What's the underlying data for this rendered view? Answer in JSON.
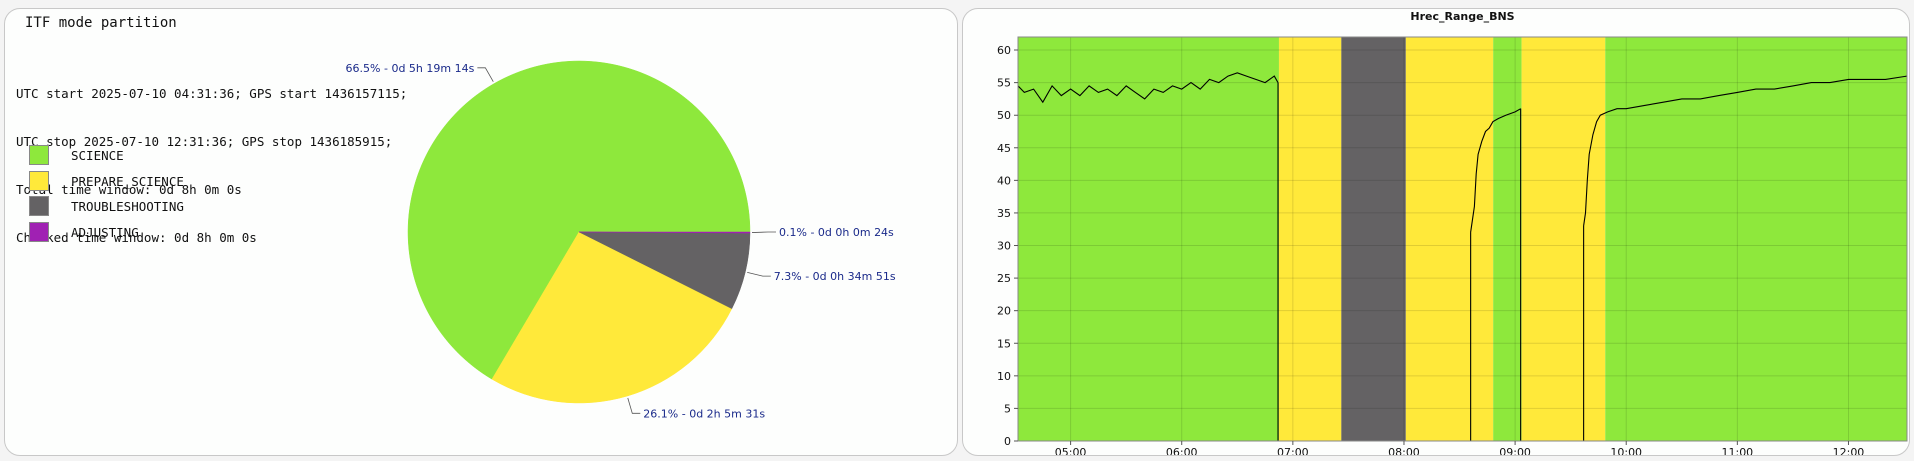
{
  "pie_panel": {
    "title": "ITF mode partition",
    "info_lines": [
      "UTC start 2025-07-10 04:31:36; GPS start 1436157115;",
      "UTC stop 2025-07-10 12:31:36; GPS stop 1436185915;",
      "Total time window: 0d 8h 0m 0s",
      "Checked time window: 0d 8h 0m 0s"
    ],
    "legend": [
      {
        "label": "SCIENCE",
        "color": "#8ee83c"
      },
      {
        "label": "PREPARE_SCIENCE",
        "color": "#ffe93a"
      },
      {
        "label": "TROUBLESHOOTING",
        "color": "#646264"
      },
      {
        "label": "ADJUSTING",
        "color": "#a021b3"
      }
    ]
  },
  "chart_data": [
    {
      "type": "pie",
      "title": "ITF mode partition",
      "slices": [
        {
          "name": "SCIENCE",
          "value": 66.5,
          "color": "#8ee83c",
          "label": "66.5% - 0d 5h 19m 14s"
        },
        {
          "name": "PREPARE_SCIENCE",
          "value": 26.1,
          "color": "#ffe93a",
          "label": "26.1% - 0d 2h 5m 31s"
        },
        {
          "name": "TROUBLESHOOTING",
          "value": 7.3,
          "color": "#646264",
          "label": "7.3% - 0d 0h 34m 51s"
        },
        {
          "name": "ADJUSTING",
          "value": 0.1,
          "color": "#a021b3",
          "label": "0.1% - 0d 0h 0m 24s"
        }
      ]
    },
    {
      "type": "line",
      "title": "Hrec_Range_BNS",
      "xlabel": "",
      "ylabel": "",
      "x_range": [
        "04:31:36",
        "12:31:36"
      ],
      "ylim": [
        0,
        62
      ],
      "yticks": [
        0,
        5,
        10,
        15,
        20,
        25,
        30,
        35,
        40,
        45,
        50,
        55,
        60
      ],
      "xticks": [
        "05:00",
        "06:00",
        "07:00",
        "08:00",
        "09:00",
        "10:00",
        "11:00",
        "12:00"
      ],
      "grid": true,
      "background_bands": [
        {
          "start": "04:31:36",
          "end": "06:52:30",
          "mode": "SCIENCE",
          "color": "#8ee83c"
        },
        {
          "start": "06:52:30",
          "end": "07:26:10",
          "mode": "PREPARE_SCIENCE",
          "color": "#ffe93a"
        },
        {
          "start": "07:26:10",
          "end": "08:01:00",
          "mode": "TROUBLESHOOTING",
          "color": "#646264"
        },
        {
          "start": "08:01:00",
          "end": "08:48:10",
          "mode": "PREPARE_SCIENCE",
          "color": "#ffe93a"
        },
        {
          "start": "08:48:10",
          "end": "09:03:30",
          "mode": "SCIENCE",
          "color": "#8ee83c"
        },
        {
          "start": "09:03:30",
          "end": "09:48:40",
          "mode": "PREPARE_SCIENCE",
          "color": "#ffe93a"
        },
        {
          "start": "09:48:40",
          "end": "12:31:36",
          "mode": "SCIENCE",
          "color": "#8ee83c"
        }
      ],
      "series": [
        {
          "color": "#000000",
          "segments": [
            {
              "x": [
                "04:31:36",
                "04:35",
                "04:40",
                "04:45",
                "04:50",
                "04:55",
                "05:00",
                "05:05",
                "05:10",
                "05:15",
                "05:20",
                "05:25",
                "05:30",
                "05:35",
                "05:40",
                "05:45",
                "05:50",
                "05:55",
                "06:00",
                "06:05",
                "06:10",
                "06:15",
                "06:20",
                "06:25",
                "06:30",
                "06:35",
                "06:40",
                "06:45",
                "06:50",
                "06:52"
              ],
              "y": [
                54.5,
                53.5,
                54,
                52,
                54.5,
                53,
                54,
                53,
                54.5,
                53.5,
                54,
                53,
                54.5,
                53.5,
                52.5,
                54,
                53.5,
                54.5,
                54,
                55,
                54,
                55.5,
                55,
                56,
                56.5,
                56,
                55.5,
                55,
                56,
                55
              ]
            },
            {
              "x": [
                "08:36",
                "08:37",
                "08:38",
                "08:39",
                "08:40",
                "08:42",
                "08:44",
                "08:46",
                "08:48",
                "08:51",
                "08:55",
                "09:00",
                "09:03"
              ],
              "y": [
                32,
                34,
                36,
                41,
                44,
                46,
                47.5,
                48,
                49,
                49.5,
                50,
                50.5,
                51
              ]
            },
            {
              "x": [
                "09:37",
                "09:38",
                "09:39",
                "09:40",
                "09:42",
                "09:44",
                "09:46",
                "09:50",
                "09:55",
                "10:00",
                "10:10",
                "10:20",
                "10:30",
                "10:40",
                "10:50",
                "11:00",
                "11:10",
                "11:20",
                "11:30",
                "11:40",
                "11:50",
                "12:00",
                "12:10",
                "12:20",
                "12:31:36"
              ],
              "y": [
                33,
                35,
                40,
                44,
                47,
                49,
                50,
                50.5,
                51,
                51,
                51.5,
                52,
                52.5,
                52.5,
                53,
                53.5,
                54,
                54,
                54.5,
                55,
                55,
                55.5,
                55.5,
                55.5,
                56
              ]
            }
          ]
        }
      ]
    }
  ]
}
